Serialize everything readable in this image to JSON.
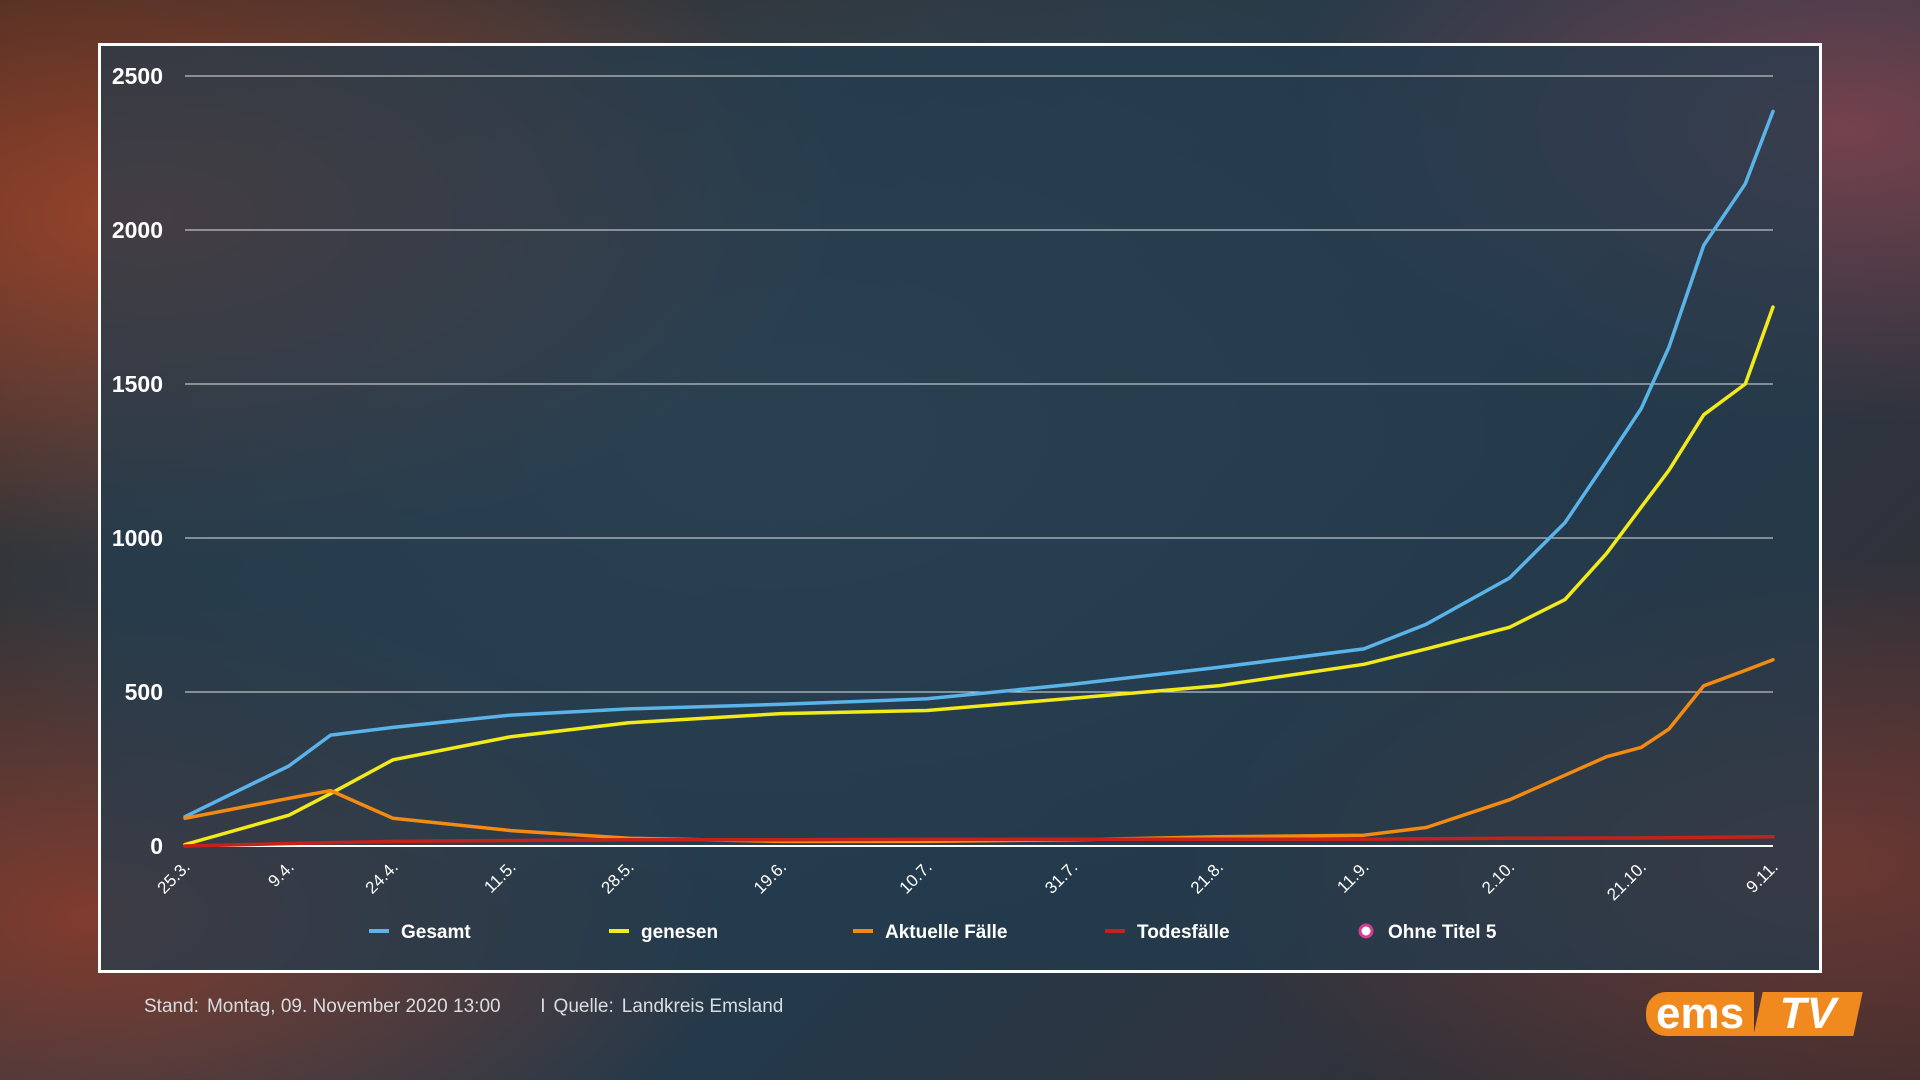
{
  "chart_data": {
    "type": "line",
    "title": "",
    "xlabel": "",
    "ylabel": "",
    "ylim": [
      0,
      2500
    ],
    "yticks": [
      0,
      500,
      1000,
      1500,
      2000,
      2500
    ],
    "xticks": [
      "25.3.",
      "9.4.",
      "24.4.",
      "11.5.",
      "28.5.",
      "19.6.",
      "10.7.",
      "31.7.",
      "21.8.",
      "11.9.",
      "2.10.",
      "21.10.",
      "9.11."
    ],
    "grid": true,
    "legend_position": "bottom",
    "series": [
      {
        "name": "Gesamt",
        "color": "#5ab4ea",
        "points": [
          {
            "x": "25.3.",
            "y": 95
          },
          {
            "x": "9.4.",
            "y": 260
          },
          {
            "x": "15.4.",
            "y": 360
          },
          {
            "x": "24.4.",
            "y": 385
          },
          {
            "x": "11.5.",
            "y": 425
          },
          {
            "x": "28.5.",
            "y": 445
          },
          {
            "x": "19.6.",
            "y": 460
          },
          {
            "x": "10.7.",
            "y": 478
          },
          {
            "x": "31.7.",
            "y": 525
          },
          {
            "x": "21.8.",
            "y": 580
          },
          {
            "x": "11.9.",
            "y": 640
          },
          {
            "x": "20.9.",
            "y": 720
          },
          {
            "x": "2.10.",
            "y": 870
          },
          {
            "x": "10.10.",
            "y": 1050
          },
          {
            "x": "16.10.",
            "y": 1250
          },
          {
            "x": "21.10.",
            "y": 1420
          },
          {
            "x": "25.10.",
            "y": 1620
          },
          {
            "x": "30.10.",
            "y": 1950
          },
          {
            "x": "5.11.",
            "y": 2150
          },
          {
            "x": "9.11.",
            "y": 2385
          }
        ]
      },
      {
        "name": "genesen",
        "color": "#f2ea1a",
        "points": [
          {
            "x": "25.3.",
            "y": 5
          },
          {
            "x": "9.4.",
            "y": 100
          },
          {
            "x": "15.4.",
            "y": 170
          },
          {
            "x": "24.4.",
            "y": 280
          },
          {
            "x": "11.5.",
            "y": 355
          },
          {
            "x": "28.5.",
            "y": 400
          },
          {
            "x": "19.6.",
            "y": 430
          },
          {
            "x": "10.7.",
            "y": 440
          },
          {
            "x": "31.7.",
            "y": 480
          },
          {
            "x": "21.8.",
            "y": 520
          },
          {
            "x": "11.9.",
            "y": 590
          },
          {
            "x": "20.9.",
            "y": 640
          },
          {
            "x": "2.10.",
            "y": 710
          },
          {
            "x": "10.10.",
            "y": 800
          },
          {
            "x": "16.10.",
            "y": 950
          },
          {
            "x": "21.10.",
            "y": 1100
          },
          {
            "x": "25.10.",
            "y": 1220
          },
          {
            "x": "30.10.",
            "y": 1400
          },
          {
            "x": "5.11.",
            "y": 1500
          },
          {
            "x": "9.11.",
            "y": 1750
          }
        ]
      },
      {
        "name": "Aktuelle Fälle",
        "color": "#f38a12",
        "points": [
          {
            "x": "25.3.",
            "y": 90
          },
          {
            "x": "9.4.",
            "y": 155
          },
          {
            "x": "15.4.",
            "y": 180
          },
          {
            "x": "24.4.",
            "y": 90
          },
          {
            "x": "11.5.",
            "y": 50
          },
          {
            "x": "28.5.",
            "y": 25
          },
          {
            "x": "19.6.",
            "y": 15
          },
          {
            "x": "10.7.",
            "y": 15
          },
          {
            "x": "31.7.",
            "y": 20
          },
          {
            "x": "21.8.",
            "y": 30
          },
          {
            "x": "11.9.",
            "y": 35
          },
          {
            "x": "20.9.",
            "y": 60
          },
          {
            "x": "2.10.",
            "y": 150
          },
          {
            "x": "10.10.",
            "y": 230
          },
          {
            "x": "16.10.",
            "y": 290
          },
          {
            "x": "21.10.",
            "y": 320
          },
          {
            "x": "25.10.",
            "y": 380
          },
          {
            "x": "30.10.",
            "y": 520
          },
          {
            "x": "5.11.",
            "y": 570
          },
          {
            "x": "9.11.",
            "y": 605
          }
        ]
      },
      {
        "name": "Todesfälle",
        "color": "#c4221b",
        "points": [
          {
            "x": "25.3.",
            "y": 0
          },
          {
            "x": "9.4.",
            "y": 8
          },
          {
            "x": "24.4.",
            "y": 15
          },
          {
            "x": "11.5.",
            "y": 18
          },
          {
            "x": "28.5.",
            "y": 20
          },
          {
            "x": "19.6.",
            "y": 20
          },
          {
            "x": "10.7.",
            "y": 22
          },
          {
            "x": "31.7.",
            "y": 22
          },
          {
            "x": "21.8.",
            "y": 22
          },
          {
            "x": "11.9.",
            "y": 22
          },
          {
            "x": "2.10.",
            "y": 25
          },
          {
            "x": "21.10.",
            "y": 26
          },
          {
            "x": "9.11.",
            "y": 30
          }
        ]
      },
      {
        "name": "Ohne Titel 5",
        "color": "#d63c96",
        "points": []
      }
    ]
  },
  "footer": {
    "stand_label": "Stand:",
    "stand_value": "Montag, 09. November 2020 13:00",
    "separator": "I",
    "source_label": "Quelle:",
    "source_value": "Landkreis Emsland"
  },
  "logo": {
    "part1": "ems",
    "part2": "TV"
  }
}
